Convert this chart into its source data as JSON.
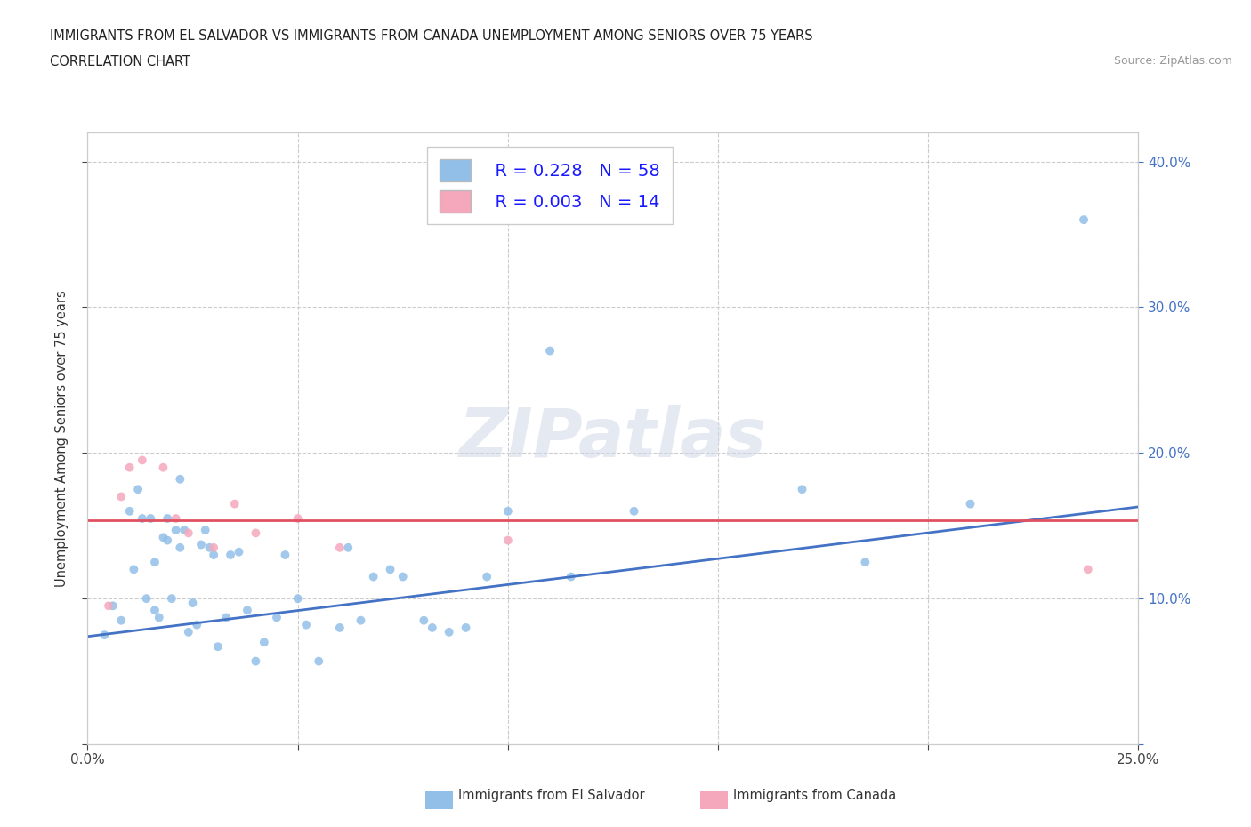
{
  "title_line1": "IMMIGRANTS FROM EL SALVADOR VS IMMIGRANTS FROM CANADA UNEMPLOYMENT AMONG SENIORS OVER 75 YEARS",
  "title_line2": "CORRELATION CHART",
  "source_text": "Source: ZipAtlas.com",
  "ylabel": "Unemployment Among Seniors over 75 years",
  "xlim": [
    0.0,
    0.25
  ],
  "ylim": [
    0.0,
    0.42
  ],
  "el_salvador_color": "#92bfe8",
  "canada_color": "#f5a8bc",
  "el_salvador_line_color": "#4472c4",
  "canada_line_color": "#e05060",
  "legend_text_color": "#1a1aff",
  "R_salvador": 0.228,
  "N_salvador": 58,
  "R_canada": 0.003,
  "N_canada": 14,
  "watermark": "ZIPatlas",
  "legend_label_1": "Immigrants from El Salvador",
  "legend_label_2": "Immigrants from Canada",
  "el_salvador_x": [
    0.004,
    0.006,
    0.008,
    0.01,
    0.011,
    0.012,
    0.013,
    0.014,
    0.015,
    0.016,
    0.016,
    0.017,
    0.018,
    0.019,
    0.019,
    0.02,
    0.021,
    0.022,
    0.022,
    0.023,
    0.024,
    0.025,
    0.026,
    0.027,
    0.028,
    0.029,
    0.03,
    0.031,
    0.033,
    0.034,
    0.036,
    0.038,
    0.04,
    0.042,
    0.045,
    0.047,
    0.05,
    0.052,
    0.055,
    0.06,
    0.062,
    0.065,
    0.068,
    0.072,
    0.075,
    0.08,
    0.082,
    0.086,
    0.09,
    0.095,
    0.1,
    0.11,
    0.115,
    0.13,
    0.17,
    0.185,
    0.21,
    0.237
  ],
  "el_salvador_y": [
    0.075,
    0.095,
    0.085,
    0.16,
    0.12,
    0.175,
    0.155,
    0.1,
    0.155,
    0.125,
    0.092,
    0.087,
    0.142,
    0.155,
    0.14,
    0.1,
    0.147,
    0.135,
    0.182,
    0.147,
    0.077,
    0.097,
    0.082,
    0.137,
    0.147,
    0.135,
    0.13,
    0.067,
    0.087,
    0.13,
    0.132,
    0.092,
    0.057,
    0.07,
    0.087,
    0.13,
    0.1,
    0.082,
    0.057,
    0.08,
    0.135,
    0.085,
    0.115,
    0.12,
    0.115,
    0.085,
    0.08,
    0.077,
    0.08,
    0.115,
    0.16,
    0.27,
    0.115,
    0.16,
    0.175,
    0.125,
    0.165,
    0.36
  ],
  "canada_x": [
    0.005,
    0.008,
    0.01,
    0.013,
    0.018,
    0.021,
    0.024,
    0.03,
    0.035,
    0.04,
    0.05,
    0.06,
    0.1,
    0.238
  ],
  "canada_y": [
    0.095,
    0.17,
    0.19,
    0.195,
    0.19,
    0.155,
    0.145,
    0.135,
    0.165,
    0.145,
    0.155,
    0.135,
    0.14,
    0.12
  ],
  "sal_line_x0": 0.0,
  "sal_line_y0": 0.074,
  "sal_line_x1": 0.25,
  "sal_line_y1": 0.163,
  "can_line_x0": 0.0,
  "can_line_y0": 0.154,
  "can_line_x1": 0.25,
  "can_line_y1": 0.154
}
